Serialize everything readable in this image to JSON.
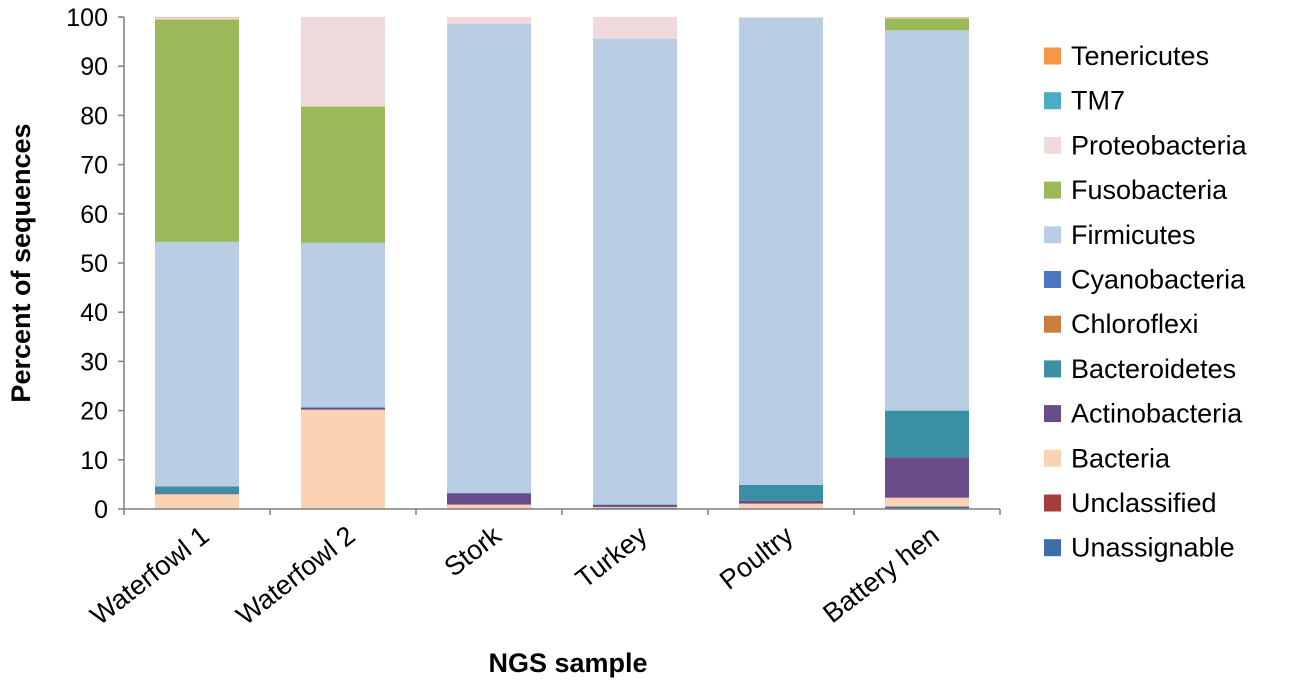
{
  "chart_data": {
    "type": "bar",
    "stacked": true,
    "title": "",
    "xlabel": "NGS sample",
    "ylabel": "Percent of sequences",
    "ylim": [
      0,
      100
    ],
    "yticks": [
      "0",
      "10",
      "20",
      "30",
      "40",
      "50",
      "60",
      "70",
      "80",
      "90",
      "100"
    ],
    "grid": false,
    "legend_position": "right",
    "categories": [
      "Waterfowl 1",
      "Waterfowl 2",
      "Stork",
      "Turkey",
      "Poultry",
      "Battery hen"
    ],
    "series": [
      {
        "name": "Unassignable",
        "color": "#3d6ea8",
        "values": [
          0.1,
          0.1,
          0.1,
          0.2,
          0.1,
          0.5
        ]
      },
      {
        "name": "Unclassified",
        "color": "#a63c3c",
        "values": [
          0.0,
          0.0,
          0.0,
          0.0,
          0.0,
          0.0
        ]
      },
      {
        "name": "Bacteria",
        "color": "#fad3b4",
        "values": [
          2.9,
          20.1,
          0.8,
          0.2,
          1.0,
          1.8
        ]
      },
      {
        "name": "Actinobacteria",
        "color": "#6a4c8a",
        "values": [
          0.2,
          0.4,
          2.3,
          0.4,
          0.6,
          8.2
        ]
      },
      {
        "name": "Bacteroidetes",
        "color": "#3b8fa3",
        "values": [
          1.4,
          0.1,
          0.1,
          0.1,
          3.2,
          9.5
        ]
      },
      {
        "name": "Chloroflexi",
        "color": "#cc7f3d",
        "values": [
          0.0,
          0.0,
          0.0,
          0.0,
          0.0,
          0.0
        ]
      },
      {
        "name": "Cyanobacteria",
        "color": "#4a78c0",
        "values": [
          0.0,
          0.0,
          0.0,
          0.0,
          0.0,
          0.0
        ]
      },
      {
        "name": "Firmicutes",
        "color": "#b9cde4",
        "values": [
          49.7,
          33.4,
          95.3,
          94.7,
          94.9,
          77.3
        ]
      },
      {
        "name": "Fusobacteria",
        "color": "#9aba59",
        "values": [
          45.2,
          27.7,
          0.0,
          0.0,
          0.0,
          2.4
        ]
      },
      {
        "name": "Proteobacteria",
        "color": "#f0dadb",
        "values": [
          0.4,
          18.2,
          1.4,
          4.4,
          0.2,
          0.2
        ]
      },
      {
        "name": "TM7",
        "color": "#4bacc6",
        "values": [
          0.0,
          0.0,
          0.0,
          0.0,
          0.0,
          0.0
        ]
      },
      {
        "name": "Tenericutes",
        "color": "#f79646",
        "values": [
          0.1,
          0.0,
          0.0,
          0.0,
          0.0,
          0.1
        ]
      }
    ]
  }
}
